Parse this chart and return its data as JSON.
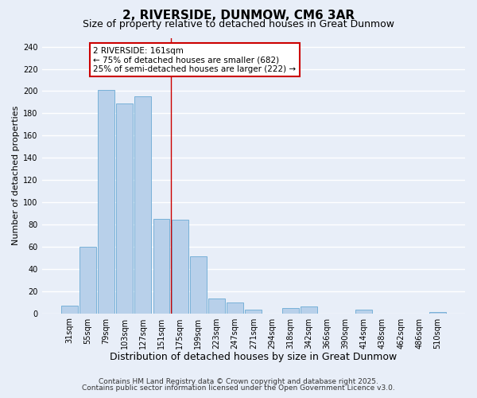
{
  "title": "2, RIVERSIDE, DUNMOW, CM6 3AR",
  "subtitle": "Size of property relative to detached houses in Great Dunmow",
  "xlabel": "Distribution of detached houses by size in Great Dunmow",
  "ylabel": "Number of detached properties",
  "bar_labels": [
    "31sqm",
    "55sqm",
    "79sqm",
    "103sqm",
    "127sqm",
    "151sqm",
    "175sqm",
    "199sqm",
    "223sqm",
    "247sqm",
    "271sqm",
    "294sqm",
    "318sqm",
    "342sqm",
    "366sqm",
    "390sqm",
    "414sqm",
    "438sqm",
    "462sqm",
    "486sqm",
    "510sqm"
  ],
  "bar_values": [
    7,
    60,
    201,
    189,
    195,
    85,
    84,
    51,
    13,
    10,
    3,
    0,
    5,
    6,
    0,
    0,
    3,
    0,
    0,
    0,
    1
  ],
  "bar_color": "#b8d0ea",
  "bar_edge_color": "#6aaad4",
  "vline_x": 5.5,
  "vline_color": "#cc0000",
  "annotation_box_text": "2 RIVERSIDE: 161sqm\n← 75% of detached houses are smaller (682)\n25% of semi-detached houses are larger (222) →",
  "annotation_box_color": "#ffffff",
  "annotation_box_edgecolor": "#cc0000",
  "ylim": [
    0,
    248
  ],
  "yticks": [
    0,
    20,
    40,
    60,
    80,
    100,
    120,
    140,
    160,
    180,
    200,
    220,
    240
  ],
  "background_color": "#e8eef8",
  "grid_color": "#ffffff",
  "footer_lines": [
    "Contains HM Land Registry data © Crown copyright and database right 2025.",
    "Contains public sector information licensed under the Open Government Licence v3.0."
  ],
  "title_fontsize": 11,
  "subtitle_fontsize": 9,
  "xlabel_fontsize": 9,
  "ylabel_fontsize": 8,
  "tick_fontsize": 7,
  "annotation_fontsize": 7.5,
  "footer_fontsize": 6.5
}
